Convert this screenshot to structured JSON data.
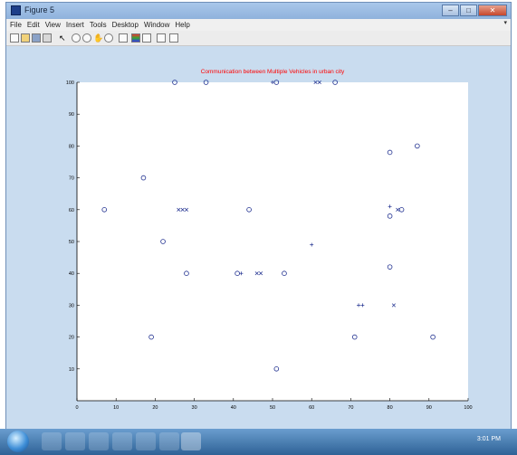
{
  "window": {
    "title": "Figure 5"
  },
  "menubar": {
    "items": [
      "File",
      "Edit",
      "View",
      "Insert",
      "Tools",
      "Desktop",
      "Window",
      "Help"
    ]
  },
  "toolbar": {
    "buttons": [
      "new-figure-icon",
      "open-file-icon",
      "save-icon",
      "print-icon",
      "select-arrow-icon",
      "zoom-in-icon",
      "zoom-out-icon",
      "pan-icon",
      "rotate-icon",
      "data-cursor-icon",
      "colorbar-icon",
      "legend-icon",
      "hide-plot-tools-icon",
      "show-plot-tools-icon"
    ]
  },
  "taskbar": {
    "clock": "3:01 PM"
  },
  "chart_data": {
    "type": "scatter",
    "title": "Communication between Multiple Vehicles in urban city",
    "xlabel": "",
    "ylabel": "",
    "xlim": [
      0,
      100
    ],
    "ylim": [
      0,
      100
    ],
    "xticks": [
      "0",
      "10",
      "20",
      "30",
      "40",
      "50",
      "60",
      "70",
      "80",
      "90",
      "100"
    ],
    "yticks": [
      "10",
      "20",
      "30",
      "40",
      "50",
      "60",
      "70",
      "80",
      "90",
      "100"
    ],
    "grid": false,
    "title_color": "#ff0000",
    "marker_color": "#1f2f8f",
    "series": [
      {
        "marker": "o",
        "x": [
          25,
          33,
          51,
          66,
          7,
          17,
          22,
          28,
          19,
          44,
          41,
          53,
          51,
          71,
          80,
          87,
          80,
          80,
          83,
          91
        ],
        "y": [
          100,
          100,
          100,
          100,
          60,
          70,
          50,
          40,
          20,
          60,
          40,
          40,
          10,
          20,
          78,
          80,
          58,
          42,
          60,
          20
        ]
      },
      {
        "marker": "x",
        "x": [
          26,
          27,
          28,
          46,
          47,
          61,
          62,
          82,
          81
        ],
        "y": [
          60,
          60,
          60,
          40,
          40,
          100,
          100,
          60,
          30
        ]
      },
      {
        "marker": "+",
        "x": [
          50,
          72,
          73,
          60,
          80,
          42
        ],
        "y": [
          100,
          30,
          30,
          49,
          61,
          40
        ]
      }
    ]
  }
}
